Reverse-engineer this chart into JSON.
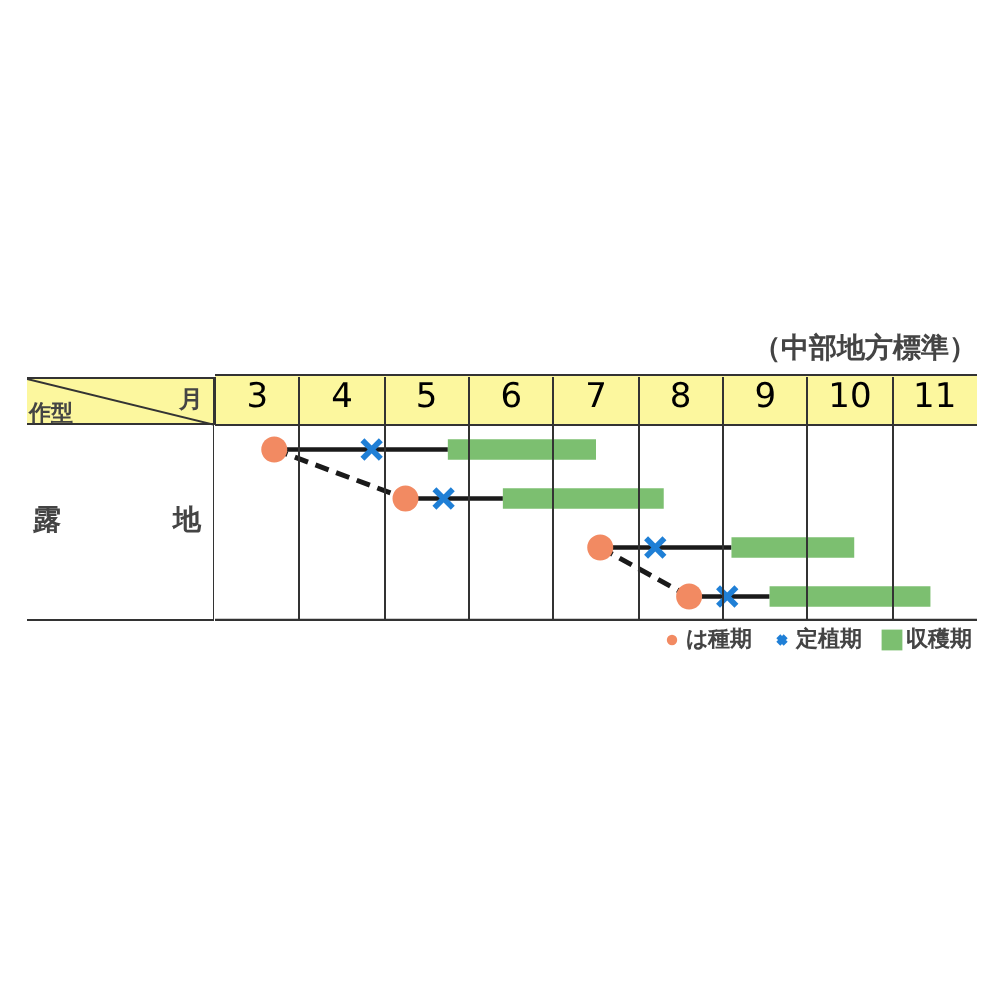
{
  "chart_data": {
    "type": "bar",
    "orientation": "horizontal",
    "subtitle": "（中部地方標準）",
    "xlabel": "月",
    "annotations": [
      "作型",
      "露地"
    ],
    "categories": [
      null,
      null,
      null,
      null
    ],
    "xlim": [
      2.5,
      11.5
    ],
    "xticks": [
      {
        "value": 2.5,
        "label": null
      },
      3,
      {
        "value": 3.5,
        "label": null
      },
      4,
      {
        "value": 4.5,
        "label": null
      },
      5,
      {
        "value": 5.5,
        "label": null
      },
      6,
      {
        "value": 6.5,
        "label": null
      },
      7,
      {
        "value": 7.5,
        "label": null
      },
      8,
      {
        "value": 8.5,
        "label": null
      },
      9,
      {
        "value": 9.5,
        "label": null
      },
      10,
      {
        "value": 10.5,
        "label": null
      },
      11
    ],
    "grid": "x",
    "tick_labels": "x",
    "legend": "bottom right",
    "series": [
      {
        "name": "は種期",
        "type": "scatter",
        "marker": "circle",
        "color": "#f28a62",
        "values": [
          3.2,
          4.75,
          7.05,
          8.1
        ],
        "errors": [
          [
            3.2,
            5.25
          ],
          [
            4.75,
            5.9
          ],
          [
            7.05,
            8.6
          ],
          [
            8.1,
            9.05
          ]
        ]
      },
      {
        "name": "定植期",
        "type": "scatter",
        "marker": "cross",
        "color": "#1f7fd6",
        "values": [
          4.35,
          5.2,
          7.7,
          8.55
        ]
      },
      {
        "name": "収穫期",
        "type": "bar",
        "color": "#7cbf70",
        "base": [
          5.25,
          5.9,
          8.6,
          9.05
        ],
        "values": [
          1.75,
          1.9,
          1.45,
          1.9
        ]
      },
      {
        "type": "line",
        "line_style": "dashed",
        "color": "#1a1a1a",
        "values": [
          3.2,
          4.75,
          null,
          null
        ]
      },
      {
        "type": "line",
        "line_style": "dashed",
        "color": "#1a1a1a",
        "values": [
          null,
          null,
          7.05,
          8.1
        ]
      }
    ]
  }
}
